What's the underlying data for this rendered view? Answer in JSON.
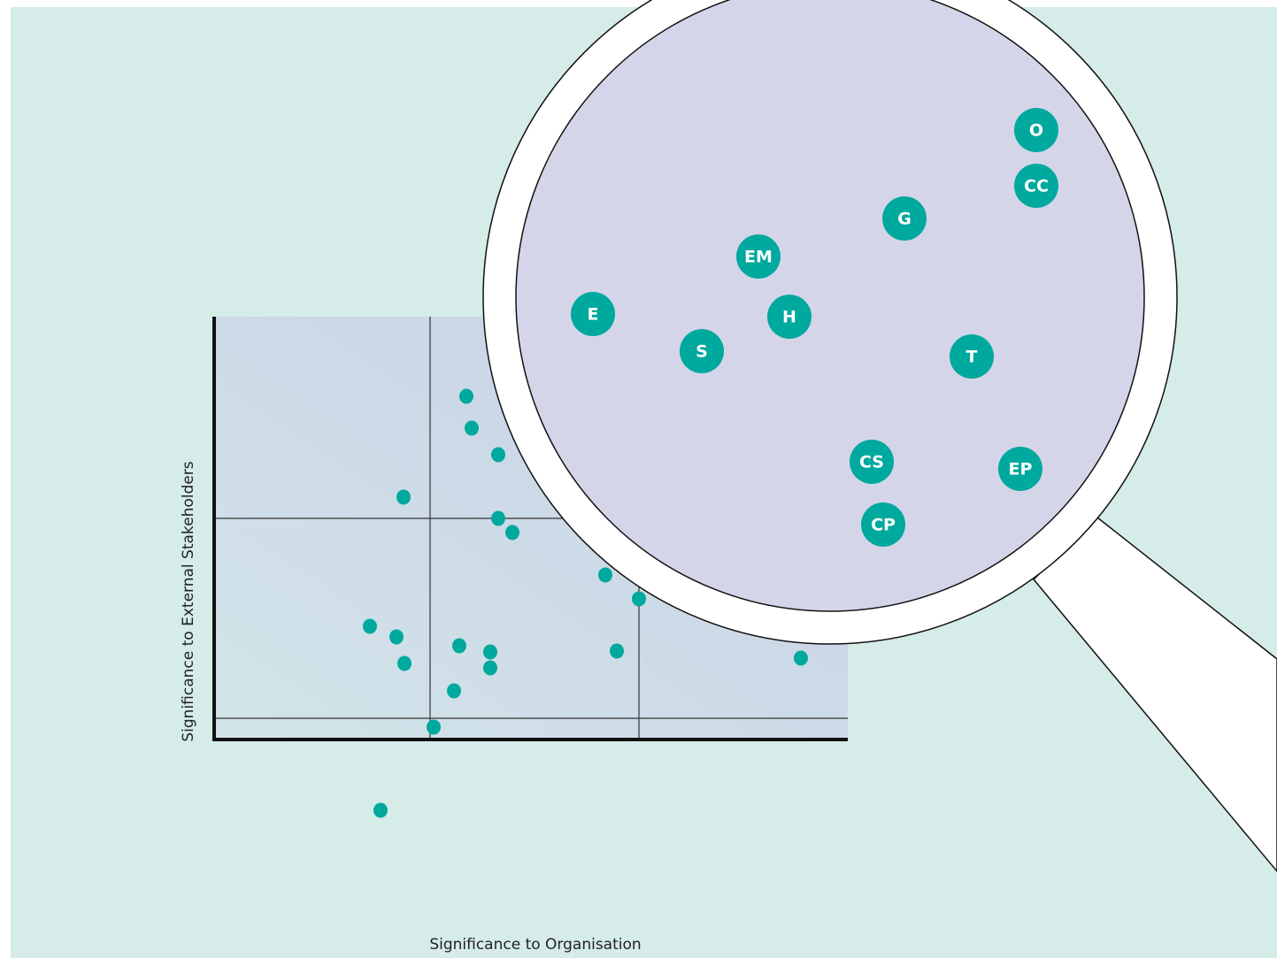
{
  "axes": {
    "x_label": "Significance to Organisation",
    "y_label": "Significance to External Stakeholders"
  },
  "magnified": {
    "labels": [
      "O",
      "CC",
      "G",
      "EM",
      "E",
      "H",
      "S",
      "T",
      "CS",
      "EP",
      "CP"
    ]
  }
}
